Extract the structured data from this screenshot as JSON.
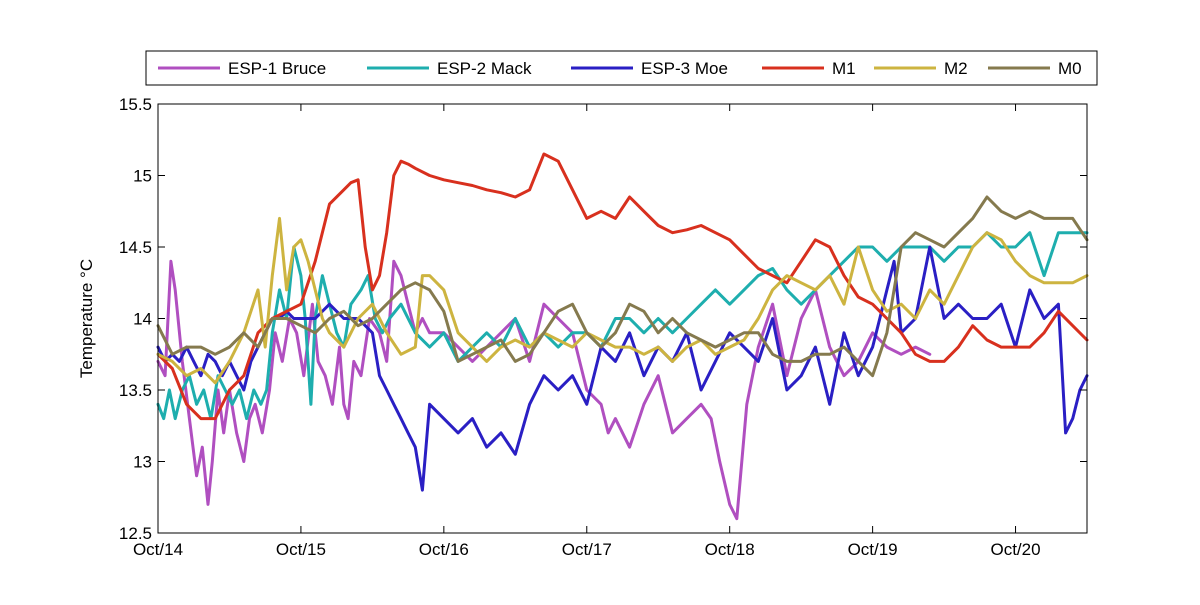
{
  "chart_data": {
    "type": "line",
    "title": "",
    "xlabel": "",
    "ylabel": "Temperature °C",
    "xlim": [
      0,
      6.5
    ],
    "ylim": [
      12.5,
      15.5
    ],
    "yticks": [
      12.5,
      13,
      13.5,
      14,
      14.5,
      15,
      15.5
    ],
    "ytick_labels": [
      "12.5",
      "13",
      "13.5",
      "14",
      "14.5",
      "15",
      "15.5"
    ],
    "xticks": [
      0,
      1,
      2,
      3,
      4,
      5,
      6
    ],
    "xtick_labels": [
      "Oct/14",
      "Oct/15",
      "Oct/16",
      "Oct/17",
      "Oct/18",
      "Oct/19",
      "Oct/20"
    ],
    "grid": false,
    "legend": {
      "placement": "top",
      "orientation": "horizontal",
      "boxed": true
    },
    "series": [
      {
        "name": "ESP-1 Bruce",
        "color": "#b04fc0",
        "x": [
          0.0,
          0.05,
          0.09,
          0.12,
          0.17,
          0.22,
          0.27,
          0.31,
          0.35,
          0.38,
          0.42,
          0.46,
          0.5,
          0.55,
          0.6,
          0.64,
          0.68,
          0.73,
          0.78,
          0.82,
          0.87,
          0.92,
          0.97,
          1.02,
          1.08,
          1.12,
          1.17,
          1.22,
          1.27,
          1.3,
          1.33,
          1.37,
          1.42,
          1.48,
          1.55,
          1.6,
          1.65,
          1.7,
          1.75,
          1.8,
          1.85,
          1.9,
          2.0,
          2.1,
          2.2,
          2.3,
          2.4,
          2.5,
          2.6,
          2.7,
          2.8,
          2.9,
          3.0,
          3.1,
          3.15,
          3.2,
          3.3,
          3.4,
          3.5,
          3.6,
          3.7,
          3.8,
          3.87,
          3.93,
          4.0,
          4.05,
          4.12,
          4.2,
          4.3,
          4.4,
          4.5,
          4.6,
          4.7,
          4.8,
          4.9,
          5.0,
          5.1,
          5.2,
          5.3,
          5.4
        ],
        "values": [
          13.7,
          13.6,
          14.4,
          14.2,
          13.7,
          13.3,
          12.9,
          13.1,
          12.7,
          13.0,
          13.5,
          13.2,
          13.5,
          13.2,
          13.0,
          13.3,
          13.4,
          13.2,
          13.5,
          13.9,
          13.7,
          14.0,
          13.9,
          13.6,
          14.1,
          13.7,
          13.6,
          13.4,
          13.8,
          13.4,
          13.3,
          13.7,
          13.6,
          14.0,
          13.9,
          13.7,
          14.4,
          14.3,
          14.1,
          13.9,
          14.0,
          13.9,
          13.9,
          13.8,
          13.7,
          13.8,
          13.9,
          14.0,
          13.7,
          14.1,
          14.0,
          13.9,
          13.5,
          13.4,
          13.2,
          13.3,
          13.1,
          13.4,
          13.6,
          13.2,
          13.3,
          13.4,
          13.3,
          13.0,
          12.7,
          12.6,
          13.4,
          13.8,
          14.1,
          13.6,
          14.0,
          14.2,
          13.8,
          13.6,
          13.7,
          13.9,
          13.8,
          13.75,
          13.8,
          13.75
        ]
      },
      {
        "name": "ESP-2 Mack",
        "color": "#1eaeae",
        "x": [
          0.0,
          0.04,
          0.08,
          0.12,
          0.17,
          0.22,
          0.27,
          0.32,
          0.37,
          0.42,
          0.47,
          0.52,
          0.57,
          0.62,
          0.67,
          0.72,
          0.76,
          0.8,
          0.85,
          0.9,
          0.95,
          1.0,
          1.03,
          1.07,
          1.1,
          1.15,
          1.2,
          1.25,
          1.3,
          1.35,
          1.42,
          1.47,
          1.52,
          1.57,
          1.62,
          1.7,
          1.8,
          1.9,
          2.0,
          2.1,
          2.2,
          2.3,
          2.4,
          2.5,
          2.6,
          2.7,
          2.8,
          2.9,
          3.0,
          3.1,
          3.2,
          3.3,
          3.4,
          3.5,
          3.6,
          3.7,
          3.8,
          3.9,
          4.0,
          4.1,
          4.2,
          4.3,
          4.4,
          4.5,
          4.6,
          4.7,
          4.8,
          4.9,
          5.0,
          5.1,
          5.2,
          5.3,
          5.4,
          5.5,
          5.6,
          5.7,
          5.8,
          5.9,
          6.0,
          6.1,
          6.2,
          6.3,
          6.4,
          6.5
        ],
        "values": [
          13.4,
          13.3,
          13.5,
          13.3,
          13.5,
          13.6,
          13.4,
          13.5,
          13.3,
          13.6,
          13.5,
          13.4,
          13.5,
          13.3,
          13.5,
          13.4,
          13.5,
          13.9,
          14.2,
          14.0,
          14.5,
          14.3,
          14.0,
          13.4,
          14.0,
          14.3,
          14.1,
          13.9,
          13.8,
          14.1,
          14.2,
          14.3,
          14.0,
          13.9,
          14.0,
          14.1,
          13.9,
          13.8,
          13.9,
          13.7,
          13.8,
          13.9,
          13.8,
          14.0,
          13.8,
          13.9,
          13.8,
          13.9,
          13.9,
          13.8,
          14.0,
          14.0,
          13.9,
          14.0,
          13.9,
          14.0,
          14.1,
          14.2,
          14.1,
          14.2,
          14.3,
          14.35,
          14.2,
          14.1,
          14.2,
          14.3,
          14.4,
          14.5,
          14.5,
          14.4,
          14.5,
          14.5,
          14.5,
          14.4,
          14.5,
          14.5,
          14.6,
          14.5,
          14.5,
          14.6,
          14.3,
          14.6,
          14.6,
          14.6
        ]
      },
      {
        "name": "ESP-3 Moe",
        "color": "#2a1fc4",
        "x": [
          0.0,
          0.05,
          0.1,
          0.15,
          0.2,
          0.25,
          0.3,
          0.35,
          0.4,
          0.45,
          0.5,
          0.55,
          0.6,
          0.65,
          0.7,
          0.75,
          0.8,
          0.85,
          0.9,
          0.95,
          1.0,
          1.1,
          1.2,
          1.3,
          1.4,
          1.5,
          1.55,
          1.6,
          1.65,
          1.7,
          1.75,
          1.8,
          1.85,
          1.9,
          2.0,
          2.1,
          2.2,
          2.3,
          2.4,
          2.5,
          2.6,
          2.7,
          2.8,
          2.9,
          3.0,
          3.1,
          3.2,
          3.3,
          3.4,
          3.5,
          3.6,
          3.7,
          3.8,
          3.9,
          4.0,
          4.1,
          4.2,
          4.3,
          4.4,
          4.5,
          4.6,
          4.7,
          4.8,
          4.9,
          5.0,
          5.05,
          5.1,
          5.15,
          5.2,
          5.3,
          5.4,
          5.5,
          5.6,
          5.7,
          5.8,
          5.9,
          6.0,
          6.1,
          6.2,
          6.3,
          6.35,
          6.4,
          6.45,
          6.5
        ],
        "values": [
          13.8,
          13.7,
          13.75,
          13.7,
          13.8,
          13.7,
          13.6,
          13.75,
          13.7,
          13.6,
          13.7,
          13.6,
          13.5,
          13.7,
          13.8,
          13.9,
          14.0,
          14.0,
          14.05,
          14.0,
          14.0,
          14.0,
          14.1,
          14.0,
          14.0,
          13.9,
          13.6,
          13.5,
          13.4,
          13.3,
          13.2,
          13.1,
          12.8,
          13.4,
          13.3,
          13.2,
          13.3,
          13.1,
          13.2,
          13.05,
          13.4,
          13.6,
          13.5,
          13.6,
          13.4,
          13.8,
          13.7,
          13.9,
          13.6,
          13.8,
          13.7,
          13.9,
          13.5,
          13.7,
          13.9,
          13.8,
          13.7,
          14.0,
          13.5,
          13.6,
          13.8,
          13.4,
          13.9,
          13.6,
          13.8,
          14.0,
          14.2,
          14.4,
          13.9,
          14.0,
          14.5,
          14.0,
          14.1,
          14.0,
          14.0,
          14.1,
          13.8,
          14.2,
          14.0,
          14.1,
          13.2,
          13.3,
          13.5,
          13.6
        ]
      },
      {
        "name": "M1",
        "color": "#d8301e",
        "x": [
          0.0,
          0.1,
          0.2,
          0.3,
          0.4,
          0.5,
          0.6,
          0.7,
          0.8,
          0.9,
          1.0,
          1.1,
          1.2,
          1.3,
          1.35,
          1.4,
          1.45,
          1.5,
          1.55,
          1.6,
          1.65,
          1.7,
          1.75,
          1.8,
          1.9,
          2.0,
          2.1,
          2.2,
          2.3,
          2.4,
          2.5,
          2.6,
          2.7,
          2.8,
          2.9,
          3.0,
          3.1,
          3.2,
          3.3,
          3.4,
          3.5,
          3.6,
          3.7,
          3.8,
          3.9,
          4.0,
          4.1,
          4.2,
          4.3,
          4.4,
          4.5,
          4.6,
          4.7,
          4.8,
          4.9,
          5.0,
          5.1,
          5.2,
          5.3,
          5.4,
          5.5,
          5.6,
          5.7,
          5.8,
          5.9,
          6.0,
          6.1,
          6.2,
          6.3,
          6.4,
          6.5
        ],
        "values": [
          13.75,
          13.65,
          13.4,
          13.3,
          13.3,
          13.5,
          13.6,
          13.9,
          14.0,
          14.05,
          14.1,
          14.4,
          14.8,
          14.9,
          14.95,
          14.97,
          14.5,
          14.2,
          14.3,
          14.6,
          15.0,
          15.1,
          15.08,
          15.05,
          15.0,
          14.97,
          14.95,
          14.93,
          14.9,
          14.88,
          14.85,
          14.9,
          15.15,
          15.1,
          14.9,
          14.7,
          14.75,
          14.7,
          14.85,
          14.75,
          14.65,
          14.6,
          14.62,
          14.65,
          14.6,
          14.55,
          14.45,
          14.35,
          14.3,
          14.25,
          14.4,
          14.55,
          14.5,
          14.3,
          14.15,
          14.1,
          14.0,
          13.9,
          13.75,
          13.7,
          13.7,
          13.8,
          13.95,
          13.85,
          13.8,
          13.8,
          13.8,
          13.9,
          14.05,
          13.95,
          13.85
        ]
      },
      {
        "name": "M2",
        "color": "#cdb440",
        "x": [
          0.0,
          0.1,
          0.2,
          0.3,
          0.4,
          0.5,
          0.6,
          0.7,
          0.75,
          0.8,
          0.85,
          0.9,
          0.95,
          1.0,
          1.05,
          1.1,
          1.15,
          1.2,
          1.3,
          1.4,
          1.5,
          1.6,
          1.7,
          1.8,
          1.85,
          1.9,
          2.0,
          2.1,
          2.2,
          2.3,
          2.4,
          2.5,
          2.6,
          2.7,
          2.8,
          2.9,
          3.0,
          3.1,
          3.2,
          3.3,
          3.4,
          3.5,
          3.6,
          3.7,
          3.8,
          3.9,
          4.0,
          4.1,
          4.2,
          4.3,
          4.4,
          4.5,
          4.6,
          4.7,
          4.8,
          4.9,
          5.0,
          5.1,
          5.2,
          5.3,
          5.4,
          5.5,
          5.6,
          5.7,
          5.8,
          5.9,
          6.0,
          6.1,
          6.2,
          6.3,
          6.4,
          6.5
        ],
        "values": [
          13.75,
          13.7,
          13.6,
          13.65,
          13.55,
          13.7,
          13.9,
          14.2,
          13.8,
          14.3,
          14.7,
          14.2,
          14.5,
          14.55,
          14.4,
          14.2,
          14.0,
          13.9,
          13.8,
          14.0,
          14.1,
          13.9,
          13.75,
          13.8,
          14.3,
          14.3,
          14.2,
          13.9,
          13.8,
          13.7,
          13.8,
          13.85,
          13.8,
          13.9,
          13.85,
          13.8,
          13.9,
          13.85,
          13.8,
          13.8,
          13.75,
          13.8,
          13.7,
          13.8,
          13.85,
          13.75,
          13.8,
          13.85,
          14.0,
          14.2,
          14.3,
          14.25,
          14.2,
          14.3,
          14.1,
          14.5,
          14.2,
          14.05,
          14.1,
          14.0,
          14.2,
          14.1,
          14.3,
          14.5,
          14.6,
          14.55,
          14.4,
          14.3,
          14.25,
          14.25,
          14.25,
          14.3
        ]
      },
      {
        "name": "M0",
        "color": "#857a4e",
        "x": [
          0.0,
          0.1,
          0.2,
          0.3,
          0.4,
          0.5,
          0.6,
          0.7,
          0.8,
          0.9,
          1.0,
          1.1,
          1.2,
          1.3,
          1.4,
          1.5,
          1.6,
          1.7,
          1.8,
          1.9,
          2.0,
          2.1,
          2.2,
          2.3,
          2.4,
          2.5,
          2.6,
          2.7,
          2.8,
          2.9,
          3.0,
          3.1,
          3.2,
          3.3,
          3.4,
          3.5,
          3.6,
          3.7,
          3.8,
          3.9,
          4.0,
          4.1,
          4.2,
          4.3,
          4.4,
          4.5,
          4.6,
          4.7,
          4.8,
          4.9,
          5.0,
          5.1,
          5.2,
          5.3,
          5.4,
          5.5,
          5.6,
          5.7,
          5.8,
          5.9,
          6.0,
          6.1,
          6.2,
          6.3,
          6.4,
          6.5
        ],
        "values": [
          13.95,
          13.75,
          13.8,
          13.8,
          13.75,
          13.8,
          13.9,
          13.8,
          14.0,
          14.0,
          13.95,
          13.9,
          14.0,
          14.05,
          13.95,
          14.0,
          14.1,
          14.2,
          14.25,
          14.2,
          14.05,
          13.7,
          13.75,
          13.8,
          13.85,
          13.7,
          13.75,
          13.9,
          14.05,
          14.1,
          13.9,
          13.8,
          13.9,
          14.1,
          14.05,
          13.9,
          14.0,
          13.9,
          13.85,
          13.8,
          13.85,
          13.9,
          13.9,
          13.75,
          13.7,
          13.7,
          13.75,
          13.75,
          13.8,
          13.7,
          13.6,
          13.9,
          14.5,
          14.6,
          14.55,
          14.5,
          14.6,
          14.7,
          14.85,
          14.75,
          14.7,
          14.75,
          14.7,
          14.7,
          14.7,
          14.55
        ]
      }
    ]
  }
}
